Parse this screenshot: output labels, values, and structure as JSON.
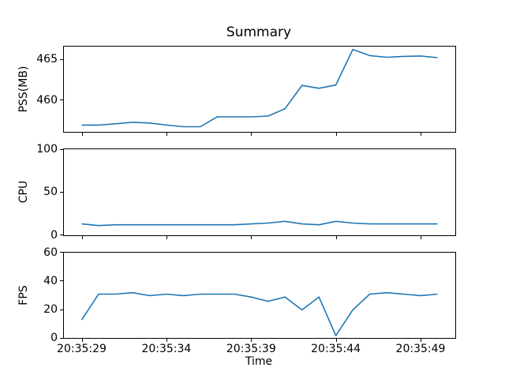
{
  "title": "Summary",
  "xlabel": "Time",
  "line_color": "#1f77b4",
  "axis_color": "#000000",
  "background_color": "#ffffff",
  "chart_data": [
    {
      "type": "line",
      "title": "Summary",
      "ylabel": "PSS(MB)",
      "legend": null,
      "grid": false,
      "x_seconds": [
        29,
        30,
        31,
        32,
        33,
        34,
        35,
        36,
        37,
        38,
        39,
        40,
        41,
        42,
        43,
        44,
        45,
        46,
        47,
        48,
        49,
        50
      ],
      "values": [
        457.0,
        457.0,
        457.15,
        457.35,
        457.25,
        457.0,
        456.8,
        456.8,
        458.0,
        458.0,
        458.0,
        458.1,
        459.0,
        461.85,
        461.5,
        461.9,
        466.25,
        465.5,
        465.3,
        465.4,
        465.45,
        465.25
      ],
      "yticks": [
        460,
        465
      ],
      "ylim": [
        456.1,
        466.6
      ],
      "xlim": [
        27.95,
        51.05
      ],
      "xticks_seconds": [
        29,
        34,
        39,
        44,
        49
      ]
    },
    {
      "type": "line",
      "ylabel": "CPU",
      "grid": false,
      "x_seconds": [
        29,
        30,
        31,
        32,
        33,
        34,
        35,
        36,
        37,
        38,
        39,
        40,
        41,
        42,
        43,
        44,
        45,
        46,
        47,
        48,
        49,
        50
      ],
      "values": [
        13,
        11,
        12,
        12,
        12,
        12,
        12,
        12,
        12,
        12,
        13,
        14,
        16,
        13,
        12,
        16,
        14,
        13,
        13,
        13,
        13,
        13
      ],
      "yticks": [
        0,
        50,
        100
      ],
      "ylim": [
        0,
        100
      ],
      "xlim": [
        27.95,
        51.05
      ],
      "xticks_seconds": [
        29,
        34,
        39,
        44,
        49
      ]
    },
    {
      "type": "line",
      "ylabel": "FPS",
      "xlabel": "Time",
      "grid": false,
      "x_seconds": [
        29,
        30,
        31,
        32,
        33,
        34,
        35,
        36,
        37,
        38,
        39,
        40,
        41,
        42,
        43,
        44,
        45,
        46,
        47,
        48,
        49,
        50
      ],
      "values": [
        13,
        31,
        31,
        32,
        30,
        31,
        30,
        31,
        31,
        31,
        29,
        26,
        29,
        20,
        29,
        2,
        20,
        31,
        32,
        31,
        30,
        31
      ],
      "yticks": [
        0,
        20,
        40,
        60
      ],
      "ylim": [
        0,
        60
      ],
      "xlim": [
        27.95,
        51.05
      ],
      "xticks_seconds": [
        29,
        34,
        39,
        44,
        49
      ],
      "xtick_labels": [
        "20:35:29",
        "20:35:34",
        "20:35:39",
        "20:35:44",
        "20:35:49"
      ]
    }
  ]
}
